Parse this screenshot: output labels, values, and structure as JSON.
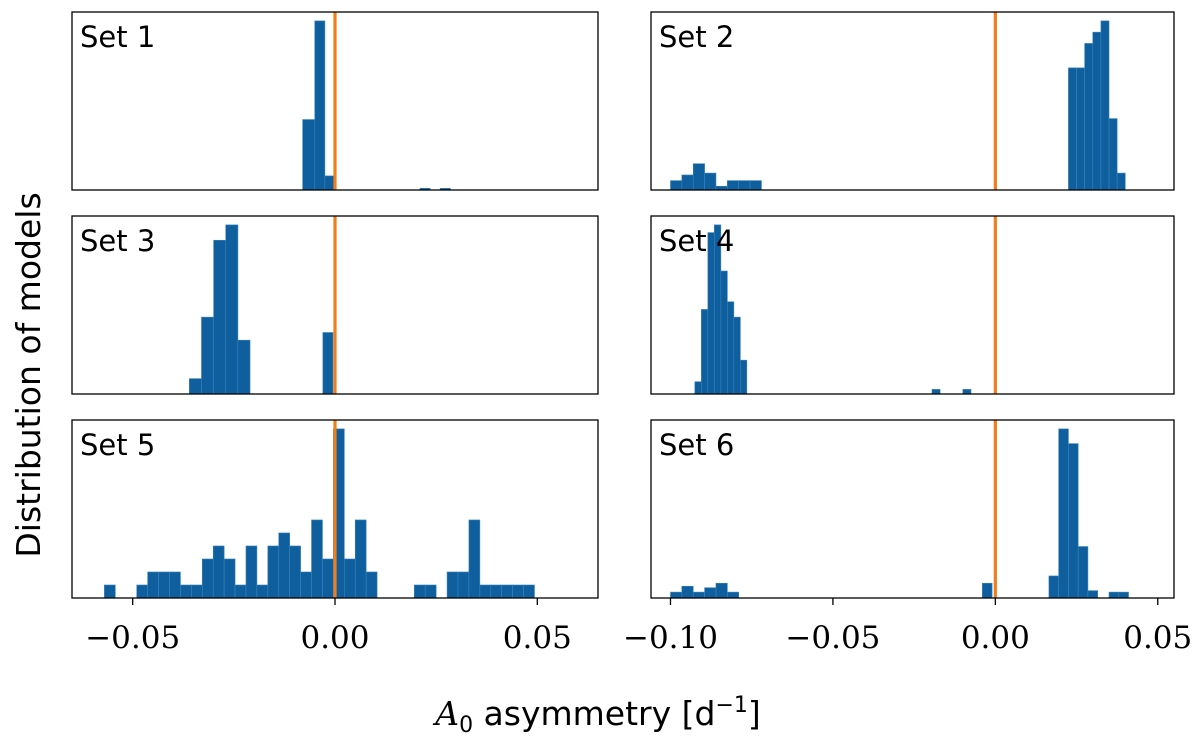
{
  "chart_data": {
    "type": "histogram-grid",
    "ylabel": "Distribution of models",
    "xlabel": {
      "symbol": "A",
      "subscript": "0",
      "text": " asymmetry [d",
      "exponent": "−1",
      "close": "]"
    },
    "reference_x": 0.0,
    "colors": {
      "bars": "#0f5f9e",
      "bar_edge": "#3a83b8",
      "reference": "#f17e1b"
    },
    "columns": [
      {
        "xlim": [
          -0.065,
          0.065
        ],
        "ticks": [
          -0.05,
          0.0,
          0.05
        ],
        "tick_labels": [
          "−0.05",
          "0.00",
          "0.05"
        ]
      },
      {
        "xlim": [
          -0.106,
          0.055
        ],
        "ticks": [
          -0.1,
          -0.05,
          0.0,
          0.05
        ],
        "tick_labels": [
          "−0.10",
          "−0.05",
          "0.00",
          "0.05"
        ]
      }
    ],
    "panels": [
      {
        "label": "Set 1",
        "col": 0,
        "bins": [
          [
            -0.008,
            -0.005,
            5
          ],
          [
            -0.005,
            -0.0025,
            12
          ],
          [
            -0.0025,
            0.0,
            1
          ],
          [
            0.021,
            0.0235,
            0.12
          ],
          [
            0.026,
            0.0285,
            0.12
          ]
        ]
      },
      {
        "label": "Set 2",
        "col": 1,
        "bins": [
          [
            -0.1,
            -0.0965,
            0.5
          ],
          [
            -0.0965,
            -0.093,
            0.8
          ],
          [
            -0.093,
            -0.0895,
            1.4
          ],
          [
            -0.0895,
            -0.086,
            0.9
          ],
          [
            -0.086,
            -0.0825,
            0.2
          ],
          [
            -0.0825,
            -0.079,
            0.5
          ],
          [
            -0.079,
            -0.0755,
            0.5
          ],
          [
            -0.0755,
            -0.072,
            0.5
          ],
          [
            0.0225,
            0.025,
            6.5
          ],
          [
            0.025,
            0.0275,
            6.5
          ],
          [
            0.0275,
            0.03,
            7.8
          ],
          [
            0.03,
            0.0325,
            8.4
          ],
          [
            0.0325,
            0.035,
            9.0
          ],
          [
            0.035,
            0.0375,
            3.8
          ],
          [
            0.0375,
            0.04,
            0.9
          ]
        ]
      },
      {
        "label": "Set 3",
        "col": 0,
        "bins": [
          [
            -0.036,
            -0.033,
            1
          ],
          [
            -0.033,
            -0.03,
            5
          ],
          [
            -0.03,
            -0.027,
            10
          ],
          [
            -0.027,
            -0.024,
            11
          ],
          [
            -0.024,
            -0.021,
            3.5
          ],
          [
            -0.003,
            -0.0005,
            4
          ]
        ]
      },
      {
        "label": "Set 4",
        "col": 1,
        "bins": [
          [
            -0.0925,
            -0.0905,
            0.8
          ],
          [
            -0.0905,
            -0.0885,
            5.5
          ],
          [
            -0.0885,
            -0.0865,
            10.5
          ],
          [
            -0.0865,
            -0.0845,
            11.0
          ],
          [
            -0.0845,
            -0.0825,
            8.0
          ],
          [
            -0.0825,
            -0.0805,
            6.0
          ],
          [
            -0.0805,
            -0.0785,
            5.0
          ],
          [
            -0.0785,
            -0.0765,
            2.2
          ],
          [
            -0.0195,
            -0.017,
            0.3
          ],
          [
            -0.01,
            -0.0075,
            0.3
          ]
        ]
      },
      {
        "label": "Set 5",
        "col": 0,
        "bins": [
          [
            -0.057,
            -0.0543,
            1
          ],
          [
            -0.049,
            -0.0463,
            1
          ],
          [
            -0.0463,
            -0.0436,
            2
          ],
          [
            -0.0436,
            -0.0409,
            2
          ],
          [
            -0.0409,
            -0.0382,
            2
          ],
          [
            -0.0382,
            -0.0355,
            1
          ],
          [
            -0.0355,
            -0.0328,
            1
          ],
          [
            -0.0328,
            -0.0301,
            3
          ],
          [
            -0.0301,
            -0.0274,
            4
          ],
          [
            -0.0274,
            -0.0247,
            3
          ],
          [
            -0.0247,
            -0.022,
            1
          ],
          [
            -0.022,
            -0.0193,
            4
          ],
          [
            -0.0193,
            -0.0166,
            1
          ],
          [
            -0.0166,
            -0.0139,
            4
          ],
          [
            -0.0139,
            -0.0112,
            5
          ],
          [
            -0.0112,
            -0.0085,
            4
          ],
          [
            -0.0085,
            -0.0058,
            2
          ],
          [
            -0.0058,
            -0.0031,
            6
          ],
          [
            -0.0031,
            -0.0004,
            3
          ],
          [
            -0.0004,
            0.0023,
            13
          ],
          [
            0.0023,
            0.005,
            3
          ],
          [
            0.005,
            0.0077,
            6
          ],
          [
            0.0077,
            0.0104,
            2
          ],
          [
            0.0196,
            0.0223,
            1
          ],
          [
            0.0223,
            0.025,
            1
          ],
          [
            0.0277,
            0.0304,
            2
          ],
          [
            0.0304,
            0.0331,
            2
          ],
          [
            0.0331,
            0.0358,
            6
          ],
          [
            0.0358,
            0.0385,
            1
          ],
          [
            0.0385,
            0.0412,
            1
          ],
          [
            0.0412,
            0.0439,
            1
          ],
          [
            0.0439,
            0.0466,
            1
          ],
          [
            0.0466,
            0.0493,
            1
          ]
        ]
      },
      {
        "label": "Set 6",
        "col": 1,
        "bins": [
          [
            -0.1,
            -0.0965,
            0.4
          ],
          [
            -0.0965,
            -0.093,
            0.8
          ],
          [
            -0.093,
            -0.0895,
            0.4
          ],
          [
            -0.0895,
            -0.086,
            0.7
          ],
          [
            -0.086,
            -0.0825,
            1.0
          ],
          [
            -0.0825,
            -0.079,
            0.4
          ],
          [
            -0.004,
            -0.001,
            1.0
          ],
          [
            0.0165,
            0.0195,
            1.5
          ],
          [
            0.0195,
            0.0225,
            11.5
          ],
          [
            0.0225,
            0.0255,
            10.5
          ],
          [
            0.0255,
            0.0285,
            3.5
          ],
          [
            0.0285,
            0.0315,
            0.5
          ],
          [
            0.035,
            0.038,
            0.4
          ],
          [
            0.038,
            0.041,
            0.4
          ]
        ]
      }
    ]
  }
}
